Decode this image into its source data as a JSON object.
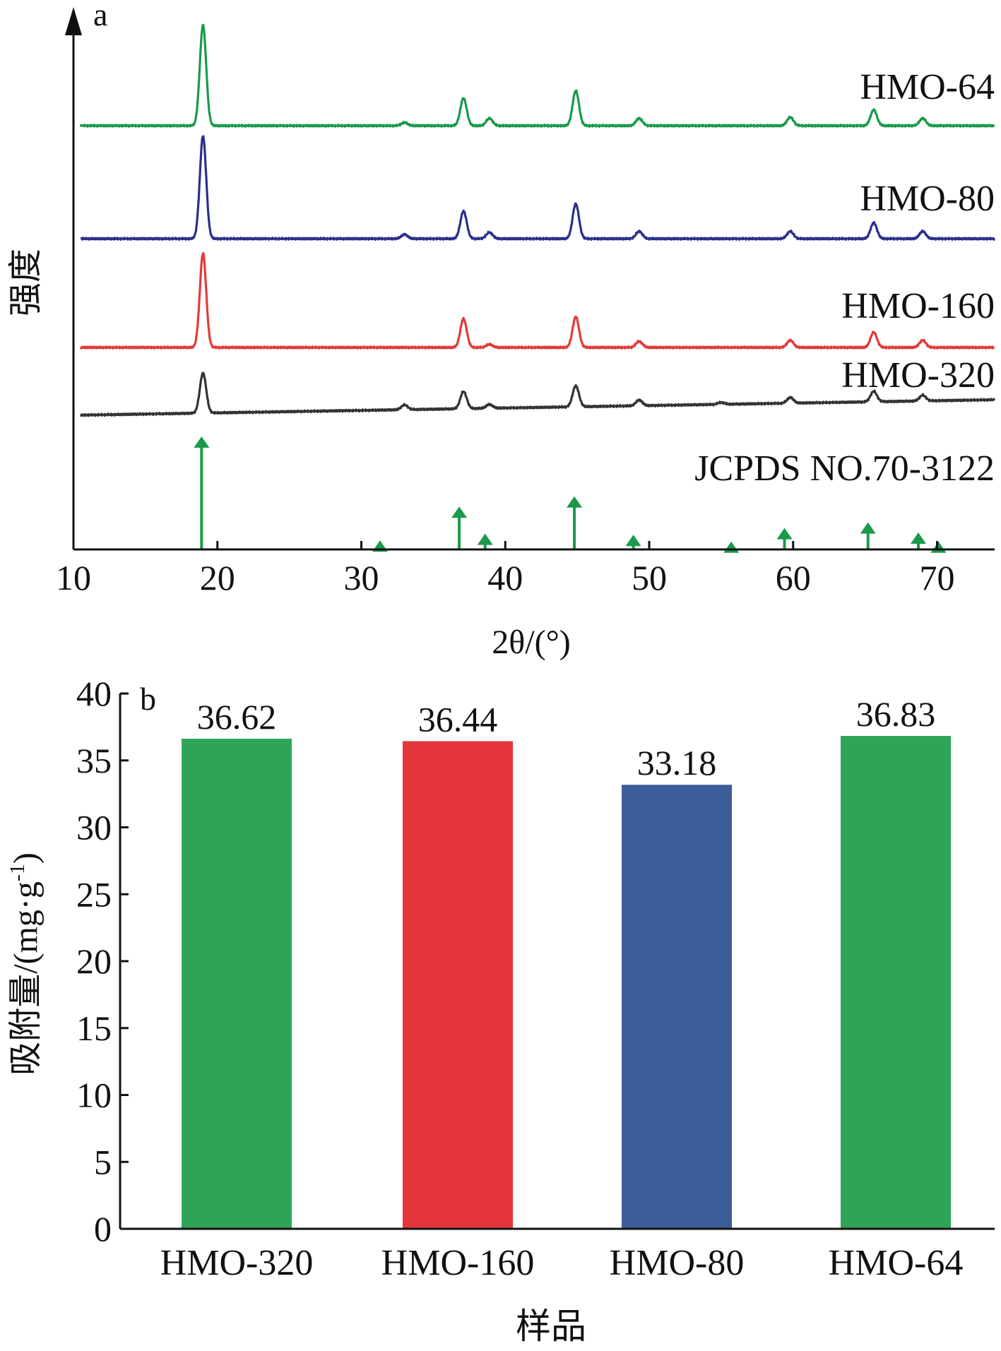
{
  "chart_data": [
    {
      "type": "line",
      "panel_label": "a",
      "xlabel": "2θ/(°)",
      "ylabel": "强度",
      "xlim": [
        10,
        74
      ],
      "xticks": [
        10,
        20,
        30,
        40,
        50,
        60,
        70
      ],
      "grid": false,
      "series": [
        {
          "name": "HMO-64",
          "color": "#1a9a4a",
          "baseline": 0.86,
          "peaks": [
            [
              19.0,
              0.95
            ],
            [
              33.0,
              0.03
            ],
            [
              37.1,
              0.26
            ],
            [
              38.9,
              0.07
            ],
            [
              44.9,
              0.33
            ],
            [
              49.3,
              0.07
            ],
            [
              59.8,
              0.08
            ],
            [
              65.6,
              0.15
            ],
            [
              69.0,
              0.07
            ]
          ]
        },
        {
          "name": "HMO-80",
          "color": "#2b2f8a",
          "baseline": 0.86,
          "peaks": [
            [
              19.0,
              0.97
            ],
            [
              33.0,
              0.04
            ],
            [
              37.1,
              0.26
            ],
            [
              38.9,
              0.06
            ],
            [
              44.9,
              0.33
            ],
            [
              49.3,
              0.07
            ],
            [
              59.8,
              0.07
            ],
            [
              65.6,
              0.15
            ],
            [
              69.0,
              0.07
            ]
          ]
        },
        {
          "name": "HMO-160",
          "color": "#e33a3a",
          "baseline": 0.86,
          "peaks": [
            [
              19.0,
              0.92
            ],
            [
              37.1,
              0.28
            ],
            [
              38.9,
              0.03
            ],
            [
              44.9,
              0.3
            ],
            [
              49.3,
              0.06
            ],
            [
              59.8,
              0.07
            ],
            [
              65.6,
              0.15
            ],
            [
              69.0,
              0.07
            ]
          ]
        },
        {
          "name": "HMO-320",
          "color": "#333333",
          "baseline_start": 0.84,
          "baseline_end": 1.0,
          "peaks": [
            [
              19.0,
              0.42
            ],
            [
              33.0,
              0.05
            ],
            [
              37.1,
              0.18
            ],
            [
              38.9,
              0.04
            ],
            [
              44.9,
              0.22
            ],
            [
              49.3,
              0.06
            ],
            [
              55.0,
              0.02
            ],
            [
              59.8,
              0.06
            ],
            [
              65.6,
              0.11
            ],
            [
              69.0,
              0.06
            ]
          ]
        }
      ],
      "reference": {
        "name": "JCPDS NO.70-3122",
        "color": "#1a9a4a",
        "peaks": [
          [
            18.9,
            1.0
          ],
          [
            31.3,
            0.08
          ],
          [
            36.8,
            0.38
          ],
          [
            38.6,
            0.14
          ],
          [
            44.8,
            0.47
          ],
          [
            48.9,
            0.13
          ],
          [
            55.7,
            0.07
          ],
          [
            59.4,
            0.19
          ],
          [
            65.2,
            0.24
          ],
          [
            68.7,
            0.15
          ],
          [
            70.1,
            0.07
          ]
        ]
      }
    },
    {
      "type": "bar",
      "panel_label": "b",
      "xlabel": "样品",
      "ylabel": "吸附量/(mg·g",
      "ylabel_sup": "-1",
      "ylabel_end": ")",
      "ylim": [
        0,
        40
      ],
      "yticks": [
        0,
        5,
        10,
        15,
        20,
        25,
        30,
        35,
        40
      ],
      "categories": [
        "HMO-320",
        "HMO-160",
        "HMO-80",
        "HMO-64"
      ],
      "values": [
        36.62,
        36.44,
        33.18,
        36.83
      ],
      "value_labels": [
        "36.62",
        "36.44",
        "33.18",
        "36.83"
      ],
      "colors": [
        "#2ea556",
        "#e5353c",
        "#3d5c9a",
        "#2ea556"
      ],
      "grid": false
    }
  ]
}
